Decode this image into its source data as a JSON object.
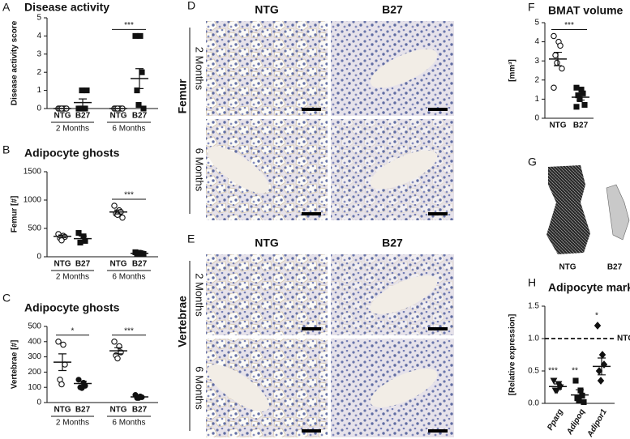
{
  "chart_data": [
    {
      "panel": "A",
      "type": "dotplot",
      "title": "Disease activity",
      "ylabel": "Disease activity score",
      "categories": [
        "NTG",
        "B27",
        "NTG",
        "B27"
      ],
      "groups": [
        "2 Months",
        "6 Months"
      ],
      "markers": [
        "circle-open",
        "square",
        "circle-open",
        "square"
      ],
      "points": [
        [
          0,
          0,
          0,
          0,
          0,
          0
        ],
        [
          0,
          0,
          0,
          0,
          1,
          1
        ],
        [
          0,
          0,
          0,
          0,
          0,
          0
        ],
        [
          4,
          4,
          2,
          1,
          0.2,
          0
        ]
      ],
      "means": [
        0,
        0.33,
        0,
        1.65
      ],
      "sems": [
        0,
        0.2,
        0,
        0.55
      ],
      "significance": [
        null,
        "***"
      ],
      "ylim": [
        0,
        5
      ],
      "yticks": [
        0,
        1,
        2,
        3,
        4,
        5
      ]
    },
    {
      "panel": "B",
      "type": "dotplot",
      "title": "Adipocyte ghosts",
      "ylabel": "Femur [#]",
      "categories": [
        "NTG",
        "B27",
        "NTG",
        "B27"
      ],
      "groups": [
        "2 Months",
        "6 Months"
      ],
      "markers": [
        "circle-open",
        "square",
        "circle-open",
        "square"
      ],
      "points": [
        [
          400,
          370,
          350,
          330,
          290
        ],
        [
          420,
          360,
          280,
          250
        ],
        [
          900,
          820,
          790,
          760,
          740,
          690
        ],
        [
          80,
          65,
          55,
          45,
          70,
          50
        ]
      ],
      "means": [
        360,
        320,
        790,
        60
      ],
      "sems": [
        25,
        45,
        35,
        8
      ],
      "significance": [
        null,
        "***"
      ],
      "ylim": [
        0,
        1500
      ],
      "yticks": [
        0,
        500,
        1000,
        1500
      ]
    },
    {
      "panel": "C",
      "type": "dotplot",
      "title": "Adipocyte ghosts",
      "ylabel": "Vertebrae [#]",
      "categories": [
        "NTG",
        "B27",
        "NTG",
        "B27"
      ],
      "groups": [
        "2 Months",
        "6 Months"
      ],
      "markers": [
        "circle-open",
        "circle",
        "circle-open",
        "circle"
      ],
      "points": [
        [
          400,
          380,
          250,
          150,
          120
        ],
        [
          150,
          130,
          110,
          100,
          95
        ],
        [
          400,
          370,
          330,
          310,
          290
        ],
        [
          50,
          40,
          35,
          30,
          30
        ]
      ],
      "means": [
        265,
        125,
        340,
        37
      ],
      "sems": [
        55,
        15,
        20,
        5
      ],
      "significance": [
        "*",
        "***"
      ],
      "ylim": [
        0,
        500
      ],
      "yticks": [
        0,
        100,
        200,
        300,
        400,
        500
      ]
    },
    {
      "panel": "F",
      "type": "dotplot",
      "title": "BMAT volume",
      "ylabel": "[mm³]",
      "categories": [
        "NTG",
        "B27"
      ],
      "markers": [
        "circle-open",
        "square"
      ],
      "points": [
        [
          4.3,
          4.0,
          3.8,
          3.3,
          2.9,
          2.6,
          1.6
        ],
        [
          1.6,
          1.5,
          1.3,
          1.2,
          1.0,
          0.7,
          0.6
        ]
      ],
      "means": [
        3.1,
        1.1
      ],
      "sems": [
        0.35,
        0.15
      ],
      "significance": [
        "***"
      ],
      "ylim": [
        0,
        5
      ],
      "yticks": [
        0,
        1,
        2,
        3,
        4,
        5
      ]
    },
    {
      "panel": "H",
      "type": "dotplot",
      "title": "Adipocyte markers",
      "ylabel": "[Relative expression]",
      "categories": [
        "Pparg",
        "Adipoq",
        "Adipor1"
      ],
      "markers": [
        "triangle",
        "square",
        "diamond"
      ],
      "points": [
        [
          0.35,
          0.3,
          0.25,
          0.2,
          0.2
        ],
        [
          0.35,
          0.2,
          0.12,
          0.08,
          0.05,
          0.02
        ],
        [
          1.2,
          0.75,
          0.6,
          0.5,
          0.35
        ]
      ],
      "means": [
        0.26,
        0.13,
        0.57
      ],
      "sems": [
        0.04,
        0.08,
        0.13
      ],
      "significance": [
        "***",
        "**",
        "*"
      ],
      "reference": {
        "value": 1,
        "label": "NTG"
      },
      "ylim": [
        0,
        1.5
      ],
      "yticks": [
        {
          "value": 0,
          "label": "0.0"
        },
        0.5,
        {
          "value": 1,
          "label": "1.0"
        },
        1.5
      ]
    }
  ],
  "micrographs": [
    {
      "panel": "D",
      "columns": [
        "NTG",
        "B27"
      ],
      "tissue": "Femur",
      "rows": [
        "2 Months",
        "6 Months"
      ]
    },
    {
      "panel": "E",
      "columns": [
        "NTG",
        "B27"
      ],
      "tissue": "Vertebrae",
      "rows": [
        "2 Months",
        "6 Months"
      ]
    }
  ],
  "renders": {
    "panel": "G",
    "labels": [
      "NTG",
      "B27"
    ]
  }
}
